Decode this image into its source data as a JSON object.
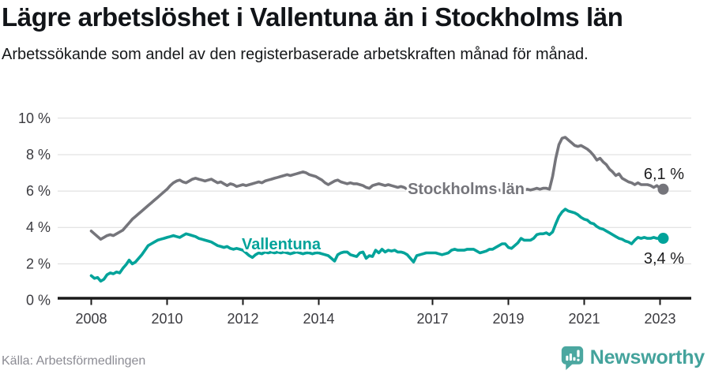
{
  "header": {
    "title": "Lägre arbetslöshet i Vallentuna än i Stockholms län",
    "subtitle": "Arbetssökande som andel av den registerbaserade arbetskraften månad för månad."
  },
  "footer": {
    "source": "Källa: Arbetsförmedlingen",
    "brand": "Newsworthy",
    "brand_icon": "newsworthy-speech-bubble-bar-chart-icon"
  },
  "colors": {
    "stockholm_line": "#75757b",
    "vallentuna_line": "#00a39a",
    "axis_line": "#1a1a1a",
    "gridline": "#dbdbdb",
    "tick_text": "#3b3b40",
    "end_value_text": "#1d1d1f",
    "source_text": "#8c8c94",
    "brand_teal": "#44a39c"
  },
  "chart_data": {
    "type": "line",
    "title": "Lägre arbetslöshet i Vallentuna än i Stockholms län",
    "subtitle": "Arbetssökande som andel av den registerbaserade arbetskraften månad för månad.",
    "unit": "%",
    "x_start_year": 2008,
    "x_interval_months": 1,
    "x_end_label_approx": "feb 2023",
    "xlim": [
      2008,
      2023.25
    ],
    "ylim": [
      0,
      10
    ],
    "grid": "horizontal",
    "legend_position": "inline-labels",
    "x_ticks": [
      {
        "year": 2008,
        "label": "2008"
      },
      {
        "year": 2010,
        "label": "2010"
      },
      {
        "year": 2012,
        "label": "2012"
      },
      {
        "year": 2014,
        "label": "2014"
      },
      {
        "year": 2017,
        "label": "2017"
      },
      {
        "year": 2019,
        "label": "2019"
      },
      {
        "year": 2021,
        "label": "2021"
      },
      {
        "year": 2023,
        "label": "2023"
      }
    ],
    "y_ticks": [
      {
        "value": 0,
        "label": "0 %"
      },
      {
        "value": 2,
        "label": "2 %"
      },
      {
        "value": 4,
        "label": "4 %"
      },
      {
        "value": 6,
        "label": "6 %"
      },
      {
        "value": 8,
        "label": "8 %"
      },
      {
        "value": 10,
        "label": "10 %"
      }
    ],
    "series": [
      {
        "name": "Stockholms län",
        "color_key": "stockholm_line",
        "end_label": "6,1 %",
        "end_value": 6.1,
        "values": [
          3.8,
          3.65,
          3.5,
          3.35,
          3.45,
          3.55,
          3.6,
          3.55,
          3.65,
          3.75,
          3.85,
          4.05,
          4.25,
          4.45,
          4.6,
          4.75,
          4.9,
          5.05,
          5.2,
          5.35,
          5.5,
          5.65,
          5.8,
          5.95,
          6.1,
          6.3,
          6.45,
          6.55,
          6.6,
          6.5,
          6.45,
          6.55,
          6.65,
          6.7,
          6.65,
          6.6,
          6.55,
          6.6,
          6.65,
          6.55,
          6.45,
          6.5,
          6.4,
          6.3,
          6.4,
          6.35,
          6.25,
          6.3,
          6.35,
          6.3,
          6.35,
          6.4,
          6.45,
          6.5,
          6.45,
          6.55,
          6.6,
          6.65,
          6.7,
          6.75,
          6.8,
          6.85,
          6.9,
          6.85,
          6.9,
          6.95,
          7.0,
          7.05,
          7.0,
          6.9,
          6.85,
          6.8,
          6.7,
          6.6,
          6.45,
          6.35,
          6.45,
          6.55,
          6.6,
          6.5,
          6.45,
          6.4,
          6.45,
          6.4,
          6.4,
          6.35,
          6.3,
          6.2,
          6.15,
          6.3,
          6.35,
          6.4,
          6.35,
          6.3,
          6.35,
          6.3,
          6.25,
          6.2,
          6.25,
          6.2,
          6.1,
          6.05,
          6.0,
          5.95,
          5.9,
          5.9,
          5.85,
          5.9,
          5.9,
          5.95,
          5.9,
          5.85,
          5.9,
          5.95,
          6.0,
          5.95,
          5.9,
          5.95,
          6.0,
          5.95,
          6.0,
          5.95,
          5.9,
          5.95,
          5.9,
          5.95,
          6.0,
          5.95,
          6.0,
          6.05,
          6.0,
          6.05,
          6.0,
          6.05,
          6.0,
          6.05,
          6.1,
          6.05,
          6.1,
          6.05,
          6.1,
          6.15,
          6.1,
          6.15,
          6.15,
          6.1,
          6.8,
          7.8,
          8.55,
          8.9,
          8.95,
          8.8,
          8.65,
          8.5,
          8.45,
          8.5,
          8.4,
          8.3,
          8.15,
          7.95,
          7.7,
          7.8,
          7.6,
          7.45,
          7.2,
          7.05,
          6.85,
          6.95,
          6.7,
          6.6,
          6.5,
          6.45,
          6.35,
          6.45,
          6.35,
          6.35,
          6.35,
          6.3,
          6.2,
          6.3,
          6.15,
          6.1
        ]
      },
      {
        "name": "Vallentuna",
        "color_key": "vallentuna_line",
        "end_label": "3,4 %",
        "end_value": 3.4,
        "values": [
          1.35,
          1.2,
          1.25,
          1.05,
          1.15,
          1.4,
          1.5,
          1.45,
          1.55,
          1.5,
          1.75,
          1.95,
          2.2,
          2.0,
          2.1,
          2.3,
          2.5,
          2.75,
          3.0,
          3.1,
          3.2,
          3.3,
          3.35,
          3.4,
          3.45,
          3.5,
          3.55,
          3.5,
          3.45,
          3.55,
          3.65,
          3.6,
          3.55,
          3.5,
          3.4,
          3.35,
          3.3,
          3.25,
          3.2,
          3.1,
          3.0,
          2.95,
          2.9,
          2.95,
          2.85,
          2.8,
          2.85,
          2.8,
          2.75,
          2.6,
          2.45,
          2.35,
          2.5,
          2.6,
          2.55,
          2.65,
          2.6,
          2.65,
          2.6,
          2.65,
          2.6,
          2.65,
          2.6,
          2.55,
          2.6,
          2.65,
          2.6,
          2.55,
          2.6,
          2.6,
          2.55,
          2.6,
          2.6,
          2.55,
          2.5,
          2.45,
          2.3,
          2.15,
          2.5,
          2.6,
          2.65,
          2.65,
          2.5,
          2.45,
          2.4,
          2.6,
          2.65,
          2.3,
          2.45,
          2.4,
          2.75,
          2.6,
          2.8,
          2.65,
          2.75,
          2.7,
          2.75,
          2.65,
          2.65,
          2.6,
          2.5,
          2.3,
          2.1,
          2.45,
          2.5,
          2.55,
          2.6,
          2.6,
          2.6,
          2.6,
          2.55,
          2.5,
          2.55,
          2.6,
          2.75,
          2.8,
          2.75,
          2.75,
          2.75,
          2.8,
          2.8,
          2.8,
          2.7,
          2.6,
          2.65,
          2.7,
          2.8,
          2.8,
          2.9,
          3.0,
          3.1,
          3.1,
          2.9,
          2.85,
          3.0,
          3.15,
          3.4,
          3.3,
          3.3,
          3.3,
          3.4,
          3.6,
          3.65,
          3.65,
          3.7,
          3.6,
          3.75,
          4.2,
          4.6,
          4.85,
          5.0,
          4.9,
          4.85,
          4.8,
          4.7,
          4.55,
          4.45,
          4.4,
          4.25,
          4.2,
          4.05,
          3.95,
          3.9,
          3.8,
          3.7,
          3.6,
          3.5,
          3.4,
          3.35,
          3.25,
          3.2,
          3.1,
          3.3,
          3.45,
          3.4,
          3.45,
          3.4,
          3.4,
          3.45,
          3.4,
          3.4,
          3.4
        ]
      }
    ]
  }
}
